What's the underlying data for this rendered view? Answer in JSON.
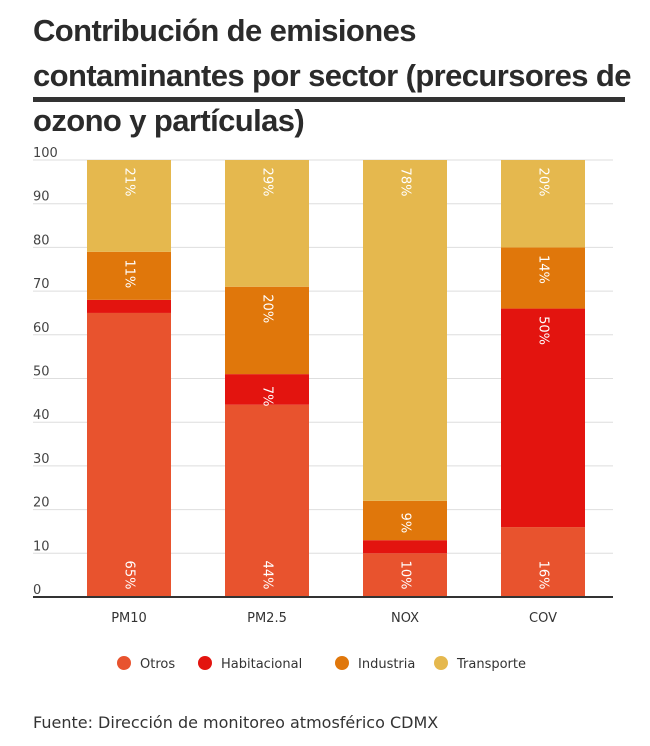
{
  "title": "Contribución de emisiones contaminantes por sector (precursores de ozono y partículas)",
  "source": "Fuente: Dirección de monitoreo atmosférico CDMX",
  "chart_data": {
    "type": "bar",
    "stacked": true,
    "title": "Contribución de emisiones contaminantes por sector (precursores de ozono y partículas)",
    "xlabel": "",
    "ylabel": "",
    "ylim": [
      0,
      100
    ],
    "yticks": [
      0,
      10,
      20,
      30,
      40,
      50,
      60,
      70,
      80,
      90,
      100
    ],
    "grid": true,
    "legend_position": "bottom",
    "categories": [
      "PM10",
      "PM2.5",
      "NOX",
      "COV"
    ],
    "series": [
      {
        "name": "Otros",
        "color": "#e8532e",
        "values": [
          65,
          44,
          10,
          16
        ],
        "labels": [
          "65%",
          "44%",
          "10%",
          "16%"
        ]
      },
      {
        "name": "Habitacional",
        "color": "#e3140f",
        "values": [
          3,
          7,
          3,
          50
        ],
        "labels": [
          "",
          "7%",
          "",
          "50%"
        ]
      },
      {
        "name": "Industria",
        "color": "#e0770b",
        "values": [
          11,
          20,
          9,
          14
        ],
        "labels": [
          "11%",
          "20%",
          "9%",
          "14%"
        ]
      },
      {
        "name": "Transporte",
        "color": "#e5b84e",
        "values": [
          21,
          29,
          78,
          20
        ],
        "labels": [
          "21%",
          "29%",
          "78%",
          "20%"
        ]
      }
    ]
  }
}
